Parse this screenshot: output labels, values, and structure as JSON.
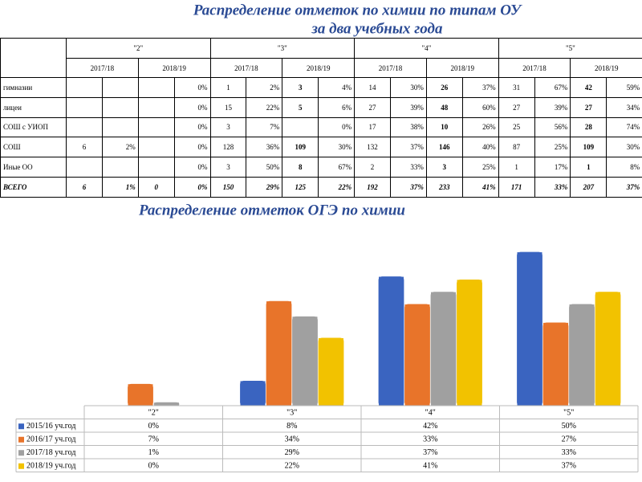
{
  "title": {
    "line1": "Распределение отметок по химии по типам ОУ",
    "line2": "за два учебных года"
  },
  "table": {
    "grades": [
      "\"2\"",
      "\"3\"",
      "\"4\"",
      "\"5\""
    ],
    "years": [
      "2017/18",
      "2018/19"
    ],
    "rows": [
      {
        "label": "гимназии",
        "cells": [
          null,
          null,
          null,
          "0%",
          "1",
          "2%",
          "3",
          "4%",
          "14",
          "30%",
          "26",
          "37%",
          "31",
          "67%",
          "42",
          "59%"
        ]
      },
      {
        "label": "лицеи",
        "cells": [
          null,
          null,
          null,
          "0%",
          "15",
          "22%",
          "5",
          "6%",
          "27",
          "39%",
          "48",
          "60%",
          "27",
          "39%",
          "27",
          "34%"
        ]
      },
      {
        "label": "СОШ с УИОП",
        "cells": [
          null,
          null,
          null,
          "0%",
          "3",
          "7%",
          null,
          "0%",
          "17",
          "38%",
          "10",
          "26%",
          "25",
          "56%",
          "28",
          "74%"
        ]
      },
      {
        "label": "СОШ",
        "cells": [
          "6",
          "2%",
          null,
          "0%",
          "128",
          "36%",
          "109",
          "30%",
          "132",
          "37%",
          "146",
          "40%",
          "87",
          "25%",
          "109",
          "30%"
        ]
      },
      {
        "label": "Иные ОО",
        "cells": [
          null,
          null,
          null,
          "0%",
          "3",
          "50%",
          "8",
          "67%",
          "2",
          "33%",
          "3",
          "25%",
          "1",
          "17%",
          "1",
          "8%"
        ]
      },
      {
        "label": "ВСЕГО",
        "cells": [
          "6",
          "1%",
          "0",
          "0%",
          "150",
          "29%",
          "125",
          "22%",
          "192",
          "37%",
          "233",
          "41%",
          "171",
          "33%",
          "207",
          "37%"
        ]
      }
    ]
  },
  "chart_data": {
    "type": "bar",
    "title": "Распределение отметок ОГЭ по химии",
    "categories": [
      "\"2\"",
      "\"3\"",
      "\"4\"",
      "\"5\""
    ],
    "series": [
      {
        "name": "2015/16 уч.год",
        "color": "#3a64c0",
        "values": [
          0,
          8,
          42,
          50
        ],
        "value_labels": [
          "0%",
          "8%",
          "42%",
          "50%"
        ]
      },
      {
        "name": "2016/17 уч.год",
        "color": "#e8742a",
        "values": [
          7,
          34,
          33,
          27
        ],
        "value_labels": [
          "7%",
          "34%",
          "33%",
          "27%"
        ]
      },
      {
        "name": "2017/18 уч.год",
        "color": "#a0a0a0",
        "values": [
          1,
          29,
          37,
          33
        ],
        "value_labels": [
          "1%",
          "29%",
          "37%",
          "33%"
        ]
      },
      {
        "name": "2018/19 уч.год",
        "color": "#f2c200",
        "values": [
          0,
          22,
          41,
          37
        ],
        "value_labels": [
          "0%",
          "22%",
          "41%",
          "37%"
        ]
      }
    ]
  }
}
